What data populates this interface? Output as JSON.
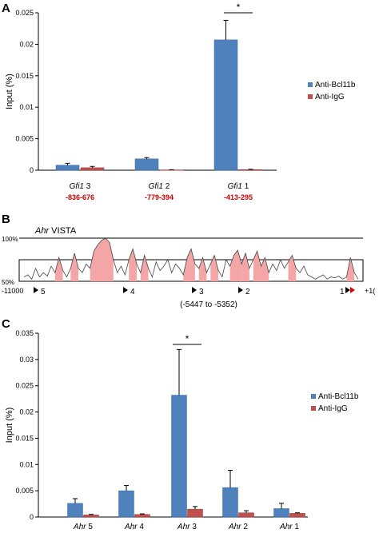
{
  "panels": {
    "A": "A",
    "B": "B",
    "C": "C"
  },
  "colors": {
    "bcl11b": "#4f81bd",
    "igg": "#c0504d",
    "vista_fill": "#f4a6a6",
    "vista_line": "#444444",
    "sites_text": "#cc0000",
    "marker_red": "#e00000"
  },
  "chart_data": [
    {
      "panel": "A",
      "type": "bar",
      "ylabel": "Input (%)",
      "ylim": [
        0,
        0.025
      ],
      "yticks": [
        "0",
        "0.005",
        "0.01",
        "0.015",
        "0.02",
        "0.025"
      ],
      "categories": [
        {
          "gene": "Gfi1",
          "num": " 3",
          "coords": "-836-676"
        },
        {
          "gene": "Gfi1",
          "num": " 2",
          "coords": "-779-394"
        },
        {
          "gene": "Gfi1",
          "num": " 1",
          "coords": "-413-295"
        }
      ],
      "series": [
        {
          "name": "Anti-Bcl11b",
          "values": [
            0.0008,
            0.0018,
            0.0207
          ],
          "errors": [
            0.0003,
            0.0002,
            0.0031
          ]
        },
        {
          "name": "Anti-IgG",
          "values": [
            0.0004,
            5e-05,
            0.0001
          ],
          "errors": [
            0.0002,
            3e-05,
            5e-05
          ]
        }
      ],
      "significance": "*",
      "legend": "right"
    },
    {
      "panel": "B",
      "type": "area",
      "title_italic": "Ahr",
      "title_rest": " VISTA",
      "ylabels": [
        "100%",
        "50%"
      ],
      "axis_left": "-11000",
      "axis_right": "+1(",
      "markers": [
        "5",
        "4",
        "3",
        "2",
        "1"
      ],
      "region": "(-5447 to -5352)",
      "profile": [
        0.1,
        0.15,
        0.05,
        0.3,
        0.1,
        0.2,
        0.12,
        0.35,
        0.2,
        0.55,
        0.25,
        0.1,
        0.3,
        0.65,
        0.3,
        0.2,
        0.4,
        0.3,
        0.7,
        0.85,
        0.95,
        1.0,
        0.9,
        0.5,
        0.2,
        0.35,
        0.15,
        0.5,
        0.75,
        0.4,
        0.2,
        0.6,
        0.3,
        0.1,
        0.45,
        0.25,
        0.35,
        0.5,
        0.2,
        0.4,
        0.3,
        0.15,
        0.55,
        0.75,
        0.4,
        0.3,
        0.55,
        0.2,
        0.4,
        0.6,
        0.25,
        0.1,
        0.5,
        0.35,
        0.6,
        0.72,
        0.4,
        0.65,
        0.3,
        0.5,
        0.7,
        0.35,
        0.55,
        0.2,
        0.4,
        0.25,
        0.5,
        0.3,
        0.45,
        0.6,
        0.3,
        0.2,
        0.35,
        0.15,
        0.1,
        0.05,
        0.1,
        0.15,
        0.05,
        0.1,
        0.08,
        0.12,
        0.05,
        0.1,
        0.55,
        0.2,
        0.05
      ]
    },
    {
      "panel": "C",
      "type": "bar",
      "ylabel": "Input (%)",
      "ylim": [
        0,
        0.035
      ],
      "yticks": [
        "0",
        "0.005",
        "0.01",
        "0.015",
        "0.02",
        "0.025",
        "0.03",
        "0.035"
      ],
      "categories": [
        {
          "gene": "Ahr",
          "num": " 5"
        },
        {
          "gene": "Ahr",
          "num": " 4"
        },
        {
          "gene": "Ahr",
          "num": " 3"
        },
        {
          "gene": "Ahr",
          "num": " 2"
        },
        {
          "gene": "Ahr",
          "num": " 1"
        }
      ],
      "series": [
        {
          "name": "Anti-Bcl11b",
          "values": [
            0.0026,
            0.005,
            0.0232,
            0.0056,
            0.0016
          ],
          "errors": [
            0.0009,
            0.001,
            0.0087,
            0.0033,
            0.001
          ]
        },
        {
          "name": "Anti-IgG",
          "values": [
            0.0004,
            0.0005,
            0.0015,
            0.0008,
            0.0007
          ],
          "errors": [
            0.0001,
            0.0001,
            0.0005,
            0.0004,
            0.0001
          ]
        }
      ],
      "significance": "*",
      "legend": "right"
    }
  ]
}
